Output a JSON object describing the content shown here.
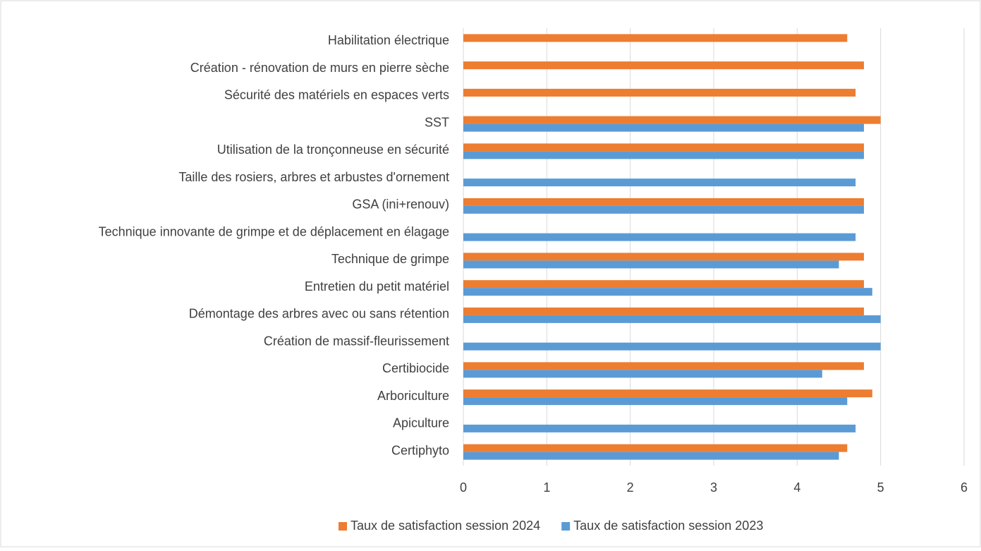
{
  "chart_data": {
    "type": "bar",
    "orientation": "horizontal",
    "categories": [
      "Habilitation électrique",
      "Création - rénovation de murs en pierre sèche",
      "Sécurité des matériels en espaces verts",
      "SST",
      "Utilisation de la tronçonneuse en sécurité",
      "Taille des rosiers, arbres et arbustes d'ornement",
      "GSA (ini+renouv)",
      "Technique innovante de grimpe et de déplacement en élagage",
      "Technique de grimpe",
      "Entretien du petit matériel",
      "Démontage des arbres avec ou sans rétention",
      "Création de massif-fleurissement",
      "Certibiocide",
      "Arboriculture",
      "Apiculture",
      "Certiphyto"
    ],
    "series": [
      {
        "name": "Taux de satisfaction session 2024",
        "color": "#ed7d31",
        "values": [
          4.6,
          4.8,
          4.7,
          5,
          4.8,
          null,
          4.8,
          null,
          4.8,
          4.8,
          4.8,
          null,
          4.8,
          4.9,
          null,
          4.6
        ]
      },
      {
        "name": "Taux de satisfaction session 2023",
        "color": "#5b9bd5",
        "values": [
          null,
          null,
          null,
          4.8,
          4.8,
          4.7,
          4.8,
          4.7,
          4.5,
          4.9,
          5,
          5,
          4.3,
          4.6,
          4.7,
          4.5
        ]
      }
    ],
    "xlim": [
      0,
      6
    ],
    "xticks": [
      0,
      1,
      2,
      3,
      4,
      5,
      6
    ],
    "grid": true,
    "legend": "bottom"
  }
}
